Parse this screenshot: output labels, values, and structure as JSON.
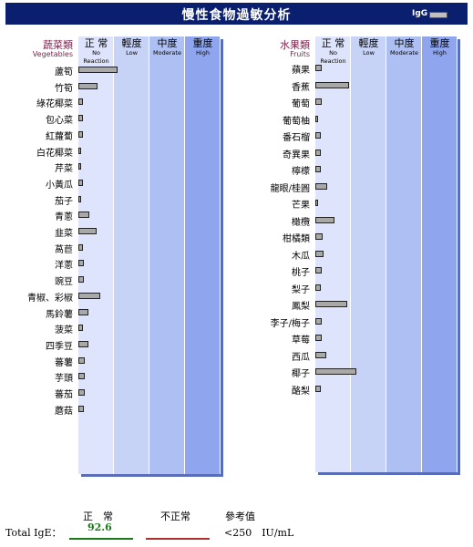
{
  "header": {
    "title": "慢性食物過敏分析",
    "legend_label": "IgG",
    "legend_color": "#c0c0c0"
  },
  "columns": [
    {
      "zh": "正 常",
      "en": "No Reaction"
    },
    {
      "zh": "輕度",
      "en": "Low"
    },
    {
      "zh": "中度",
      "en": "Moderate"
    },
    {
      "zh": "重度",
      "en": "High"
    }
  ],
  "band_colors": [
    "#dde4fb",
    "#c7d2f7",
    "#aebff3",
    "#8fa6ef"
  ],
  "chart_data": [
    {
      "type": "bar",
      "category_zh": "蔬菜類",
      "category_en": "Vegetables",
      "scale": "0 = no reaction, 4 = end of High band",
      "items": [
        {
          "label": "蘆筍",
          "value": 1.1
        },
        {
          "label": "竹筍",
          "value": 0.55
        },
        {
          "label": "綠花椰菜",
          "value": 0.12
        },
        {
          "label": "包心菜",
          "value": 0.12
        },
        {
          "label": "紅蘿蔔",
          "value": 0.12
        },
        {
          "label": "白花椰菜",
          "value": 0.08
        },
        {
          "label": "芹菜",
          "value": 0.08
        },
        {
          "label": "小黃瓜",
          "value": 0.12
        },
        {
          "label": "茄子",
          "value": 0.06
        },
        {
          "label": "青蔥",
          "value": 0.3
        },
        {
          "label": "韭菜",
          "value": 0.5
        },
        {
          "label": "萵苣",
          "value": 0.12
        },
        {
          "label": "洋蔥",
          "value": 0.15
        },
        {
          "label": "豌豆",
          "value": 0.15
        },
        {
          "label": "青椒、彩椒",
          "value": 0.62
        },
        {
          "label": "馬鈴薯",
          "value": 0.28
        },
        {
          "label": "菠菜",
          "value": 0.12
        },
        {
          "label": "四季豆",
          "value": 0.28
        },
        {
          "label": "蕃薯",
          "value": 0.17
        },
        {
          "label": "芋頭",
          "value": 0.17
        },
        {
          "label": "蕃茄",
          "value": 0.17
        },
        {
          "label": "蘑菇",
          "value": 0.15
        }
      ]
    },
    {
      "type": "bar",
      "category_zh": "水果類",
      "category_en": "Fruits",
      "scale": "0 = no reaction, 4 = end of High band",
      "items": [
        {
          "label": "蘋果",
          "value": 0.17
        },
        {
          "label": "香蕉",
          "value": 0.95
        },
        {
          "label": "葡萄",
          "value": 0.17
        },
        {
          "label": "葡萄柚",
          "value": 0.06
        },
        {
          "label": "番石榴",
          "value": 0.15
        },
        {
          "label": "奇異果",
          "value": 0.15
        },
        {
          "label": "檸檬",
          "value": 0.15
        },
        {
          "label": "龍眼/桂圓",
          "value": 0.33
        },
        {
          "label": "芒果",
          "value": 0.06
        },
        {
          "label": "橄欖",
          "value": 0.55
        },
        {
          "label": "柑橘類",
          "value": 0.2
        },
        {
          "label": "木瓜",
          "value": 0.22
        },
        {
          "label": "桃子",
          "value": 0.17
        },
        {
          "label": "梨子",
          "value": 0.15
        },
        {
          "label": "鳳梨",
          "value": 0.9
        },
        {
          "label": "李子/梅子",
          "value": 0.17
        },
        {
          "label": "草莓",
          "value": 0.17
        },
        {
          "label": "西瓜",
          "value": 0.3
        },
        {
          "label": "椰子",
          "value": 1.15
        },
        {
          "label": "酪梨",
          "value": 0.15
        }
      ]
    }
  ],
  "footer": {
    "total_label": "Total IgE：",
    "normal_head": "正　常",
    "normal_value": "92.6",
    "abnormal_head": "不正常",
    "ref_head": "參考值",
    "ref_value": "<250　IU/mL"
  }
}
